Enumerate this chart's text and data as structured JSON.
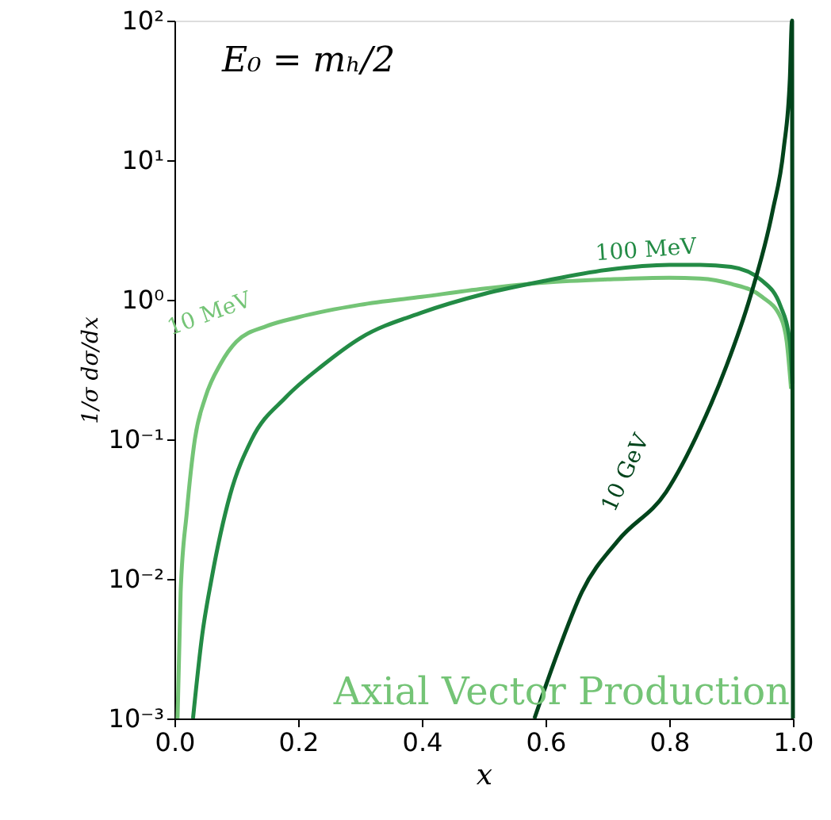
{
  "chart_data": {
    "type": "line",
    "xlabel": "x",
    "ylabel": "1/σ dσ/dx",
    "annotations": [
      "E₀ = mₕ/2",
      "Axial Vector Production"
    ],
    "log": "y",
    "grid": false,
    "marker": "none",
    "line_style": "solid",
    "xlim": [
      0,
      1
    ],
    "ylim": [
      0.001,
      100
    ],
    "xticks": [
      {
        "value": 0,
        "label": "0.0"
      },
      0.2,
      0.4,
      0.6,
      0.8,
      {
        "value": 1,
        "label": "1.0"
      }
    ],
    "yticks": [
      {
        "value": 0.001,
        "label": "10⁻³"
      },
      {
        "value": 0.01,
        "label": "10⁻²"
      },
      {
        "value": 0.1,
        "label": "10⁻¹"
      },
      {
        "value": 1,
        "label": "10⁰"
      },
      {
        "value": 10,
        "label": "10¹"
      },
      {
        "value": 100,
        "label": "10²"
      }
    ],
    "series": [
      {
        "name": "10 MeV",
        "color": "#74c476",
        "x": [
          0.005,
          0.01,
          0.02,
          0.033,
          0.05,
          0.075,
          0.1,
          0.15,
          0.2,
          0.3,
          0.4,
          0.5,
          0.6,
          0.7,
          0.8,
          0.85,
          0.9,
          0.95,
          0.98,
          0.99,
          0.997
        ],
        "values": [
          0.001,
          0.008,
          0.03,
          0.1,
          0.2,
          0.35,
          0.5,
          0.65,
          0.75,
          0.92,
          1.05,
          1.2,
          1.33,
          1.4,
          1.44,
          1.42,
          1.3,
          1.05,
          0.75,
          0.5,
          0.23
        ]
      },
      {
        "name": "100 MeV",
        "color": "#238b45",
        "x": [
          0.03,
          0.045,
          0.06,
          0.09,
          0.125,
          0.18,
          0.24,
          0.3,
          0.4,
          0.5,
          0.6,
          0.7,
          0.8,
          0.85,
          0.9,
          0.95,
          0.98,
          0.995,
          0.999
        ],
        "values": [
          0.001,
          0.004,
          0.01,
          0.04,
          0.1,
          0.2,
          0.34,
          0.53,
          0.81,
          1.1,
          1.37,
          1.64,
          1.78,
          1.78,
          1.72,
          1.37,
          0.9,
          0.5,
          0.25
        ]
      },
      {
        "name": "10 GeV",
        "color": "#00441b",
        "x": [
          0.582,
          0.62,
          0.659,
          0.718,
          0.795,
          0.85,
          0.893,
          0.931,
          0.967,
          0.985,
          0.995,
          0.9985,
          1.0
        ],
        "values": [
          0.001,
          0.003,
          0.0081,
          0.019,
          0.042,
          0.12,
          0.34,
          1.05,
          4.3,
          12,
          38,
          100,
          0.001
        ]
      }
    ]
  }
}
